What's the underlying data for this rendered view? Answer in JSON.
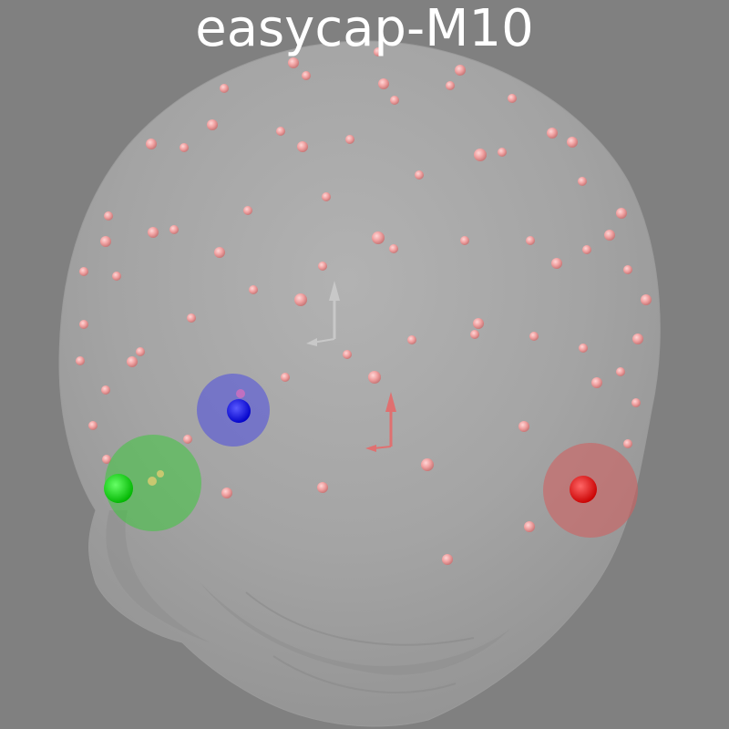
{
  "title": "easycap-M10",
  "colors": {
    "background": "#808080",
    "head": "#a8a8a8",
    "electrode": "#f0a0a0",
    "nasion_fiducial": "#0000ff",
    "lpa_fiducial": "#00dd00",
    "rpa_fiducial": "#ff0000",
    "axes_head": "#c8c8c8",
    "axes_device": "#e07070"
  },
  "objects": {
    "head": "scalp-surface",
    "electrodes": "eeg-electrodes",
    "fiducials": [
      "nasion-fiducial",
      "lpa-fiducial",
      "rpa-fiducial"
    ],
    "axes": [
      "head-coordinate-axes",
      "device-coordinate-axes"
    ]
  }
}
